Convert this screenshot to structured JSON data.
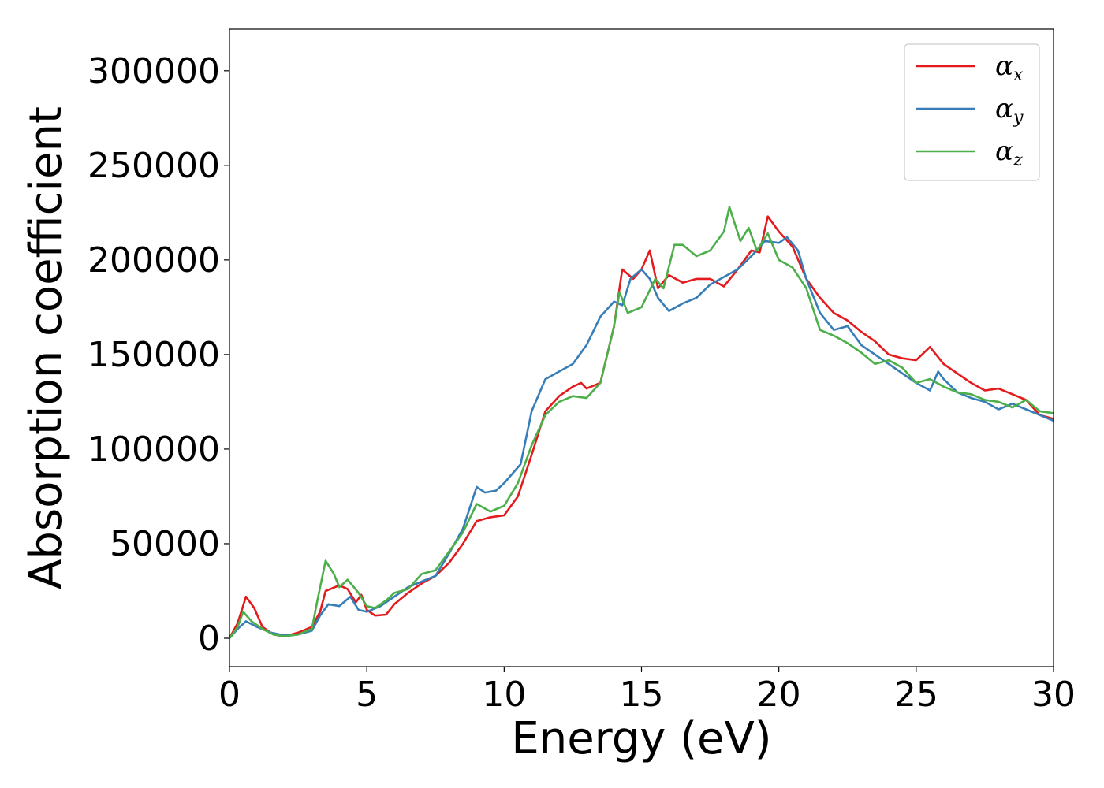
{
  "chart_data": {
    "type": "line",
    "title": "",
    "xlabel": "Energy (eV)",
    "ylabel": "Absorption coefficient",
    "xlim": [
      0,
      30
    ],
    "ylim": [
      -15000,
      322000
    ],
    "xticks": [
      0,
      5,
      10,
      15,
      20,
      25,
      30
    ],
    "yticks": [
      0,
      50000,
      100000,
      150000,
      200000,
      250000,
      300000
    ],
    "grid": false,
    "legend_position": "top-right",
    "series": [
      {
        "name": "α_x",
        "symbol": "α",
        "sub": "x",
        "color": "#e41a1c",
        "points": [
          [
            0,
            0
          ],
          [
            0.3,
            8000
          ],
          [
            0.6,
            22000
          ],
          [
            0.9,
            16000
          ],
          [
            1.2,
            6000
          ],
          [
            1.6,
            2000
          ],
          [
            2,
            1000
          ],
          [
            2.5,
            3000
          ],
          [
            3,
            6000
          ],
          [
            3.3,
            14000
          ],
          [
            3.5,
            25000
          ],
          [
            4,
            28000
          ],
          [
            4.3,
            26000
          ],
          [
            4.6,
            19000
          ],
          [
            4.8,
            23000
          ],
          [
            5,
            15000
          ],
          [
            5.3,
            12000
          ],
          [
            5.7,
            12500
          ],
          [
            6,
            18000
          ],
          [
            6.5,
            24000
          ],
          [
            7,
            29000
          ],
          [
            7.5,
            33000
          ],
          [
            8,
            40000
          ],
          [
            8.5,
            50000
          ],
          [
            9,
            62000
          ],
          [
            9.5,
            64000
          ],
          [
            10,
            65000
          ],
          [
            10.5,
            75000
          ],
          [
            11,
            97000
          ],
          [
            11.5,
            120000
          ],
          [
            12,
            128000
          ],
          [
            12.5,
            133000
          ],
          [
            12.8,
            135000
          ],
          [
            13,
            132000
          ],
          [
            13.5,
            135000
          ],
          [
            14,
            165000
          ],
          [
            14.3,
            195000
          ],
          [
            14.7,
            190000
          ],
          [
            15,
            195000
          ],
          [
            15.3,
            205000
          ],
          [
            15.6,
            185000
          ],
          [
            16,
            192000
          ],
          [
            16.5,
            188000
          ],
          [
            17,
            190000
          ],
          [
            17.5,
            190000
          ],
          [
            18,
            186000
          ],
          [
            18.5,
            195000
          ],
          [
            19,
            205000
          ],
          [
            19.3,
            204000
          ],
          [
            19.6,
            223000
          ],
          [
            20,
            215000
          ],
          [
            20.5,
            207000
          ],
          [
            21,
            190000
          ],
          [
            21.5,
            180000
          ],
          [
            22,
            172000
          ],
          [
            22.5,
            168000
          ],
          [
            23,
            162000
          ],
          [
            23.5,
            157000
          ],
          [
            24,
            150000
          ],
          [
            24.5,
            148000
          ],
          [
            25,
            147000
          ],
          [
            25.5,
            154000
          ],
          [
            26,
            145000
          ],
          [
            26.5,
            140000
          ],
          [
            27,
            135000
          ],
          [
            27.5,
            131000
          ],
          [
            28,
            132000
          ],
          [
            28.5,
            129000
          ],
          [
            29,
            126000
          ],
          [
            29.5,
            118000
          ],
          [
            30,
            116000
          ]
        ]
      },
      {
        "name": "α_y",
        "symbol": "α",
        "sub": "y",
        "color": "#377eb8",
        "points": [
          [
            0,
            0
          ],
          [
            0.3,
            5000
          ],
          [
            0.6,
            9000
          ],
          [
            1,
            6000
          ],
          [
            1.5,
            3000
          ],
          [
            2,
            1500
          ],
          [
            2.5,
            2000
          ],
          [
            3,
            4000
          ],
          [
            3.3,
            12000
          ],
          [
            3.6,
            18000
          ],
          [
            4,
            17000
          ],
          [
            4.4,
            22000
          ],
          [
            4.7,
            15000
          ],
          [
            5,
            14000
          ],
          [
            5.5,
            17000
          ],
          [
            6,
            22000
          ],
          [
            6.5,
            27000
          ],
          [
            7,
            30000
          ],
          [
            7.5,
            33000
          ],
          [
            8,
            45000
          ],
          [
            8.5,
            58000
          ],
          [
            9,
            80000
          ],
          [
            9.3,
            77000
          ],
          [
            9.7,
            78000
          ],
          [
            10,
            82000
          ],
          [
            10.3,
            87000
          ],
          [
            10.6,
            92000
          ],
          [
            11,
            120000
          ],
          [
            11.5,
            137000
          ],
          [
            12,
            141000
          ],
          [
            12.5,
            145000
          ],
          [
            13,
            155000
          ],
          [
            13.5,
            170000
          ],
          [
            14,
            178000
          ],
          [
            14.3,
            176000
          ],
          [
            14.6,
            190000
          ],
          [
            15,
            195000
          ],
          [
            15.3,
            190000
          ],
          [
            15.6,
            180000
          ],
          [
            16,
            173000
          ],
          [
            16.5,
            177000
          ],
          [
            17,
            180000
          ],
          [
            17.5,
            187000
          ],
          [
            18,
            191000
          ],
          [
            18.5,
            195000
          ],
          [
            19,
            202000
          ],
          [
            19.5,
            210000
          ],
          [
            20,
            209000
          ],
          [
            20.3,
            212000
          ],
          [
            20.7,
            205000
          ],
          [
            21,
            190000
          ],
          [
            21.5,
            172000
          ],
          [
            22,
            163000
          ],
          [
            22.5,
            165000
          ],
          [
            23,
            155000
          ],
          [
            23.5,
            150000
          ],
          [
            24,
            145000
          ],
          [
            24.5,
            140000
          ],
          [
            25,
            135000
          ],
          [
            25.5,
            131000
          ],
          [
            25.8,
            141000
          ],
          [
            26,
            137000
          ],
          [
            26.5,
            130000
          ],
          [
            27,
            127000
          ],
          [
            27.5,
            125000
          ],
          [
            28,
            121000
          ],
          [
            28.5,
            124000
          ],
          [
            29,
            121000
          ],
          [
            29.5,
            118000
          ],
          [
            30,
            115000
          ]
        ]
      },
      {
        "name": "α_z",
        "symbol": "α",
        "sub": "z",
        "color": "#4daf4a",
        "points": [
          [
            0,
            0
          ],
          [
            0.3,
            6000
          ],
          [
            0.5,
            14000
          ],
          [
            0.8,
            9000
          ],
          [
            1.2,
            5000
          ],
          [
            1.6,
            2000
          ],
          [
            2,
            1000
          ],
          [
            2.5,
            2000
          ],
          [
            3,
            5000
          ],
          [
            3.2,
            20000
          ],
          [
            3.5,
            41000
          ],
          [
            3.8,
            34000
          ],
          [
            4,
            27000
          ],
          [
            4.3,
            31000
          ],
          [
            4.7,
            24000
          ],
          [
            5,
            17000
          ],
          [
            5.3,
            16000
          ],
          [
            5.7,
            20000
          ],
          [
            6,
            24000
          ],
          [
            6.5,
            26000
          ],
          [
            7,
            34000
          ],
          [
            7.5,
            36000
          ],
          [
            8,
            46000
          ],
          [
            8.5,
            56000
          ],
          [
            9,
            71000
          ],
          [
            9.5,
            67000
          ],
          [
            10,
            70000
          ],
          [
            10.5,
            82000
          ],
          [
            11,
            102000
          ],
          [
            11.5,
            118000
          ],
          [
            12,
            125000
          ],
          [
            12.5,
            128000
          ],
          [
            13,
            127000
          ],
          [
            13.5,
            135000
          ],
          [
            14,
            165000
          ],
          [
            14.2,
            183000
          ],
          [
            14.5,
            172000
          ],
          [
            15,
            175000
          ],
          [
            15.5,
            190000
          ],
          [
            15.8,
            185000
          ],
          [
            16.2,
            208000
          ],
          [
            16.5,
            208000
          ],
          [
            17,
            202000
          ],
          [
            17.5,
            205000
          ],
          [
            18,
            215000
          ],
          [
            18.2,
            228000
          ],
          [
            18.6,
            210000
          ],
          [
            18.9,
            217000
          ],
          [
            19.2,
            205000
          ],
          [
            19.6,
            214000
          ],
          [
            20,
            200000
          ],
          [
            20.5,
            196000
          ],
          [
            21,
            185000
          ],
          [
            21.5,
            163000
          ],
          [
            22,
            160000
          ],
          [
            22.5,
            156000
          ],
          [
            23,
            151000
          ],
          [
            23.5,
            145000
          ],
          [
            24,
            147000
          ],
          [
            24.5,
            143000
          ],
          [
            25,
            135000
          ],
          [
            25.5,
            137000
          ],
          [
            26,
            133000
          ],
          [
            26.5,
            130000
          ],
          [
            27,
            129000
          ],
          [
            27.5,
            126000
          ],
          [
            28,
            125000
          ],
          [
            28.5,
            122000
          ],
          [
            29,
            126000
          ],
          [
            29.5,
            120000
          ],
          [
            30,
            119000
          ]
        ]
      }
    ]
  }
}
